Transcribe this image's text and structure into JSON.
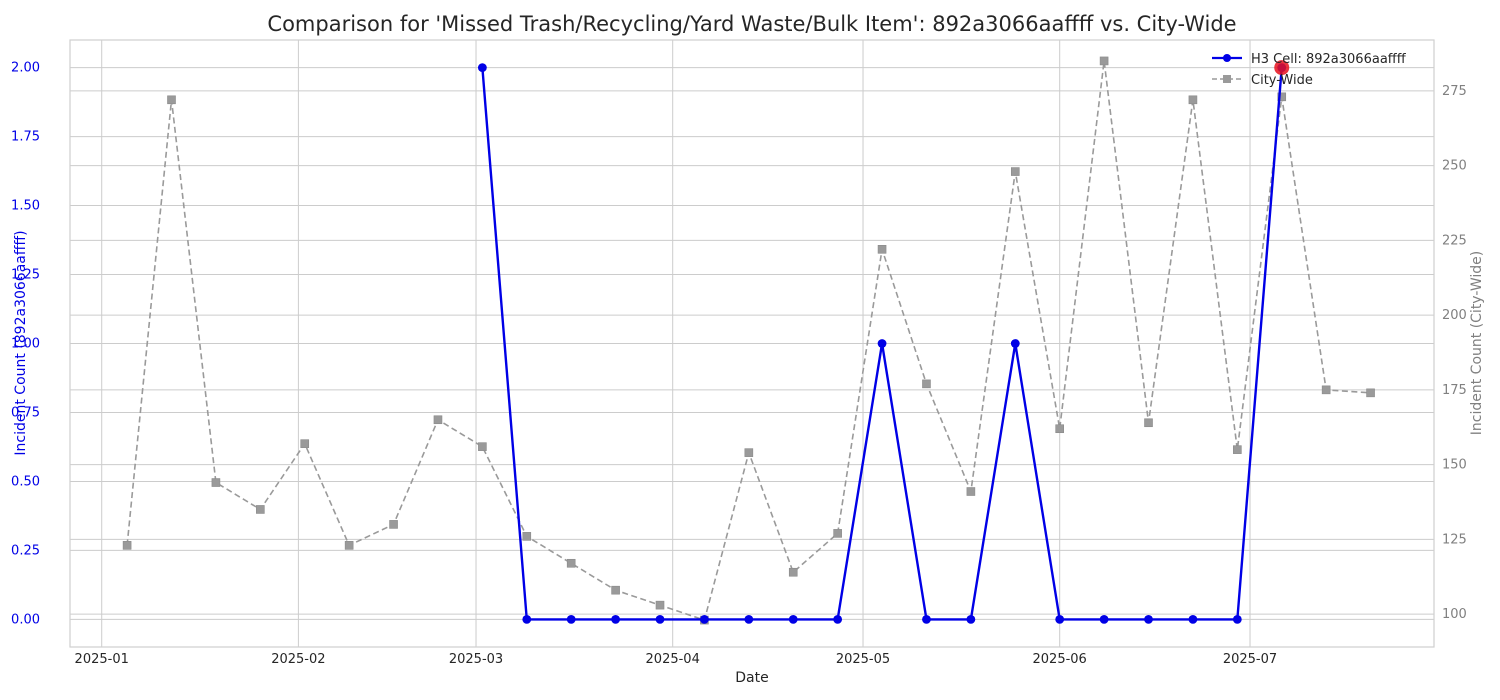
{
  "chart_data": {
    "type": "line",
    "title": "Comparison for 'Missed Trash/Recycling/Yard Waste/Bulk Item': 892a3066aaffff vs. City-Wide",
    "xlabel": "Date",
    "ylabel_left": "Incident Count (892a3066aaffff)",
    "ylabel_right": "Incident Count (City-Wide)",
    "x_ticks": [
      "2025-01",
      "2025-02",
      "2025-03",
      "2025-04",
      "2025-05",
      "2025-06",
      "2025-07"
    ],
    "x_range": [
      "2024-12-27",
      "2025-07-30"
    ],
    "y_left_range": [
      -0.1,
      2.1
    ],
    "y_left_ticks": [
      "0.00",
      "0.25",
      "0.50",
      "0.75",
      "1.00",
      "1.25",
      "1.50",
      "1.75",
      "2.00"
    ],
    "y_right_range": [
      89,
      292
    ],
    "y_right_ticks": [
      "100",
      "125",
      "150",
      "175",
      "200",
      "225",
      "250",
      "275"
    ],
    "grid": true,
    "legend_position": "top-right",
    "colors": {
      "h3": "#0000e6",
      "city": "#9a9a9a",
      "highlight": "#e8101c",
      "left_axis": "#0000e6",
      "right_axis": "#808080"
    },
    "series": [
      {
        "name": "H3 Cell: 892a3066aaffff",
        "axis": "left",
        "style": "solid",
        "marker": "circle",
        "x": [
          "2025-03-02",
          "2025-03-09",
          "2025-03-16",
          "2025-03-23",
          "2025-03-30",
          "2025-04-06",
          "2025-04-13",
          "2025-04-20",
          "2025-04-27",
          "2025-05-04",
          "2025-05-11",
          "2025-05-18",
          "2025-05-25",
          "2025-06-01",
          "2025-06-08",
          "2025-06-15",
          "2025-06-22",
          "2025-06-29",
          "2025-07-06"
        ],
        "values": [
          2,
          0,
          0,
          0,
          0,
          0,
          0,
          0,
          0,
          1,
          0,
          0,
          1,
          0,
          0,
          0,
          0,
          0,
          2
        ]
      },
      {
        "name": "City-Wide",
        "axis": "right",
        "style": "dashed",
        "marker": "square",
        "x": [
          "2025-01-05",
          "2025-01-12",
          "2025-01-19",
          "2025-01-26",
          "2025-02-02",
          "2025-02-09",
          "2025-02-16",
          "2025-02-23",
          "2025-03-02",
          "2025-03-09",
          "2025-03-16",
          "2025-03-23",
          "2025-03-30",
          "2025-04-06",
          "2025-04-13",
          "2025-04-20",
          "2025-04-27",
          "2025-05-04",
          "2025-05-11",
          "2025-05-18",
          "2025-05-25",
          "2025-06-01",
          "2025-06-08",
          "2025-06-15",
          "2025-06-22",
          "2025-06-29",
          "2025-07-06",
          "2025-07-13",
          "2025-07-20"
        ],
        "values": [
          123,
          272,
          144,
          135,
          157,
          123,
          130,
          165,
          156,
          126,
          117,
          108,
          103,
          98,
          154,
          114,
          127,
          222,
          177,
          141,
          248,
          162,
          285,
          164,
          272,
          155,
          273,
          175,
          174
        ]
      }
    ],
    "highlight_point": {
      "x": "2025-07-06",
      "value": 2,
      "axis": "left"
    }
  }
}
